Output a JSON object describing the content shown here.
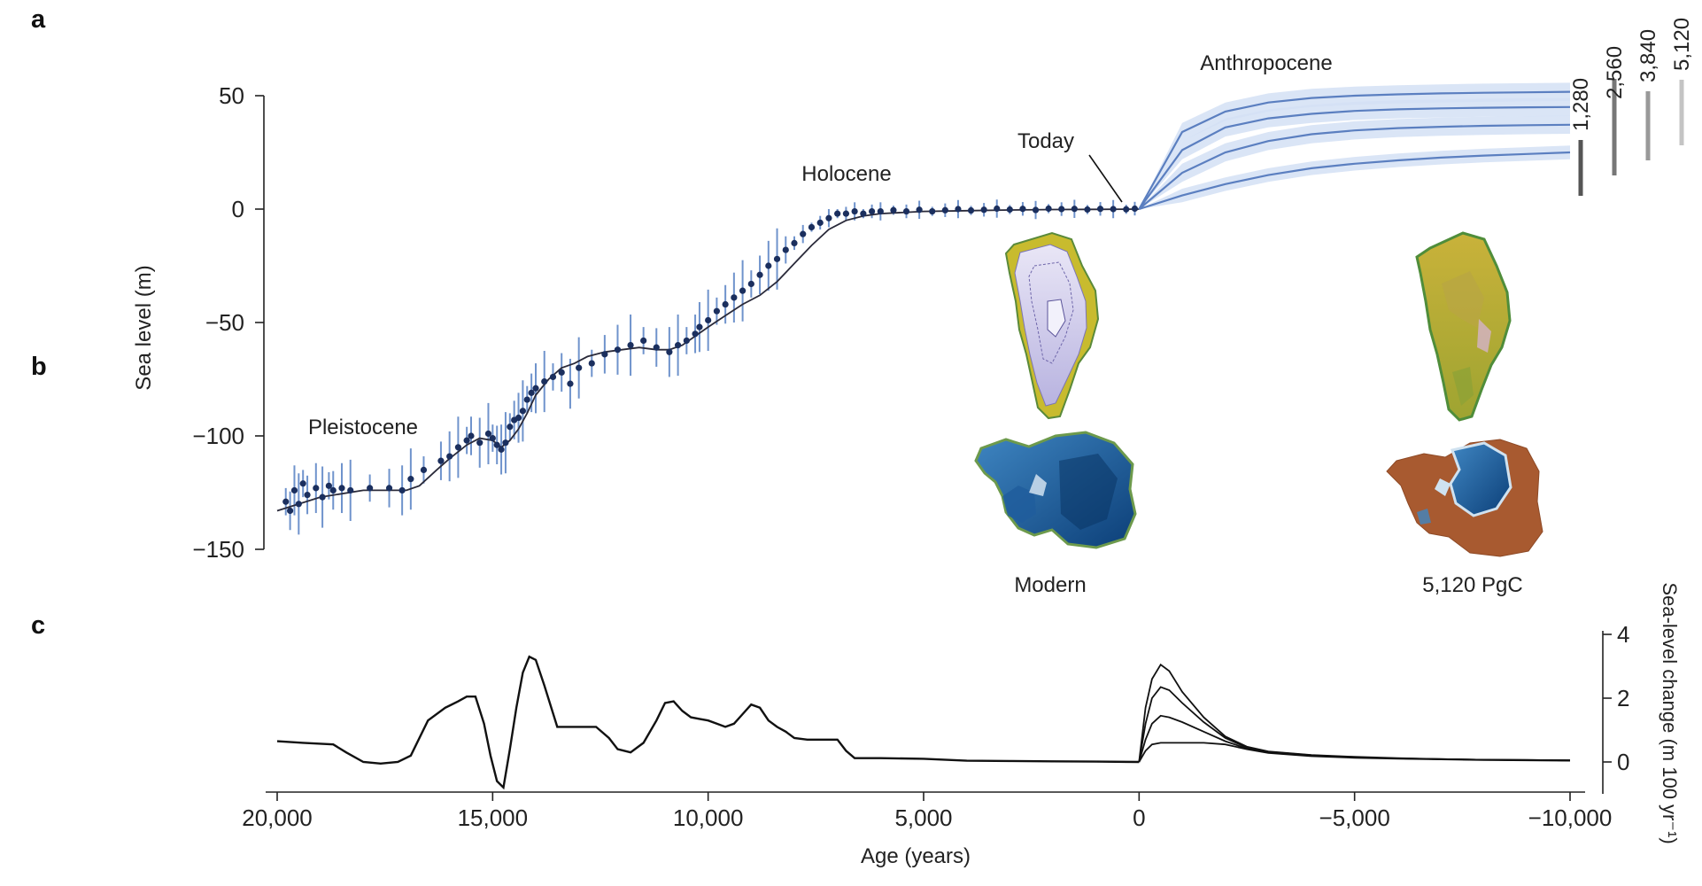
{
  "panels": {
    "a": "a",
    "b": "b",
    "c": "c"
  },
  "colors": {
    "data_points": "#1b2f5e",
    "error_bars": "#6f93cc",
    "projection_line": "#5b7fc0",
    "projection_band": "#d4e0f4",
    "fit_line": "#2a2a3a",
    "ink": "#222222"
  },
  "legend": {
    "scenarios": [
      "1,280",
      "2,560",
      "3,840",
      "5,120"
    ],
    "scenario_shades": [
      "#555555",
      "#777777",
      "#999999",
      "#c4c4c4"
    ]
  },
  "maps": {
    "left_label": "Modern",
    "right_label": "5,120 PgC",
    "left_icon": "greenland-antarctica-ice-sheet-modern-icon",
    "right_icon": "greenland-antarctica-ice-sheet-5120pgc-icon"
  },
  "chart_data": [
    {
      "type": "scatter",
      "panel": "a",
      "title": "",
      "xlabel": "Age (years)",
      "ylabel": "Sea level (m)",
      "xlim": [
        20000,
        -10000
      ],
      "ylim": [
        -150,
        50
      ],
      "x_ticks": [
        20000,
        15000,
        10000,
        5000,
        0,
        -5000,
        -10000
      ],
      "x_tick_labels": [
        "20,000",
        "15,000",
        "10,000",
        "5,000",
        "0",
        "−5,000",
        "−10,000"
      ],
      "y_ticks": [
        50,
        0,
        -50,
        -100,
        -150
      ],
      "y_tick_labels": [
        "50",
        "0",
        "−50",
        "−100",
        "−150"
      ],
      "annotations": [
        "Pleistocene",
        "Holocene",
        "Today",
        "Anthropocene"
      ],
      "series": [
        {
          "kind": "observations",
          "x": [
            19800,
            19700,
            19600,
            19500,
            19400,
            19300,
            19100,
            18950,
            18800,
            18700,
            18500,
            18300,
            17850,
            17400,
            17100,
            16900,
            16600,
            16200,
            16000,
            15800,
            15600,
            15500,
            15300,
            15100,
            15000,
            14900,
            14800,
            14700,
            14600,
            14500,
            14400,
            14300,
            14200,
            14100,
            14000,
            13800,
            13600,
            13400,
            13200,
            13000,
            12700,
            12400,
            12100,
            11800,
            11500,
            11200,
            10900,
            10700,
            10500,
            10300,
            10200,
            10000,
            9800,
            9600,
            9400,
            9200,
            9000,
            8800,
            8600,
            8400,
            8200,
            8000,
            7800,
            7600,
            7400,
            7200,
            7000,
            6800,
            6600,
            6400,
            6200,
            6000,
            5700,
            5400,
            5100,
            4800,
            4500,
            4200,
            3900,
            3600,
            3300,
            3000,
            2700,
            2400,
            2100,
            1800,
            1500,
            1200,
            900,
            600,
            300,
            100
          ],
          "y": [
            -129,
            -133,
            -124,
            -130,
            -121,
            -126,
            -123,
            -127,
            -122,
            -124,
            -123,
            -124,
            -123,
            -123,
            -124,
            -119,
            -115,
            -111,
            -109,
            -105,
            -102,
            -100,
            -103,
            -99,
            -101,
            -104,
            -106,
            -103,
            -96,
            -93,
            -92,
            -89,
            -84,
            -81,
            -79,
            -76,
            -74,
            -72,
            -77,
            -70,
            -68,
            -64,
            -62,
            -60,
            -58,
            -61,
            -63,
            -60,
            -58,
            -55,
            -52,
            -49,
            -45,
            -42,
            -39,
            -36,
            -33,
            -29,
            -25,
            -22,
            -18,
            -15,
            -11,
            -8,
            -6,
            -4,
            -2,
            -2,
            -1,
            -2,
            -1,
            -1,
            -0.5,
            -1,
            -0.3,
            -1,
            -0.5,
            0,
            -0.6,
            -0.3,
            0.2,
            -0.2,
            0.1,
            -0.4,
            0.2,
            0,
            0.1,
            -0.2,
            0.1,
            0,
            -0.1,
            0.2
          ]
        },
        {
          "kind": "fit",
          "x": [
            20000,
            19000,
            18000,
            17300,
            17000,
            16700,
            16300,
            16000,
            15600,
            15300,
            15000,
            14800,
            14600,
            14400,
            14200,
            14000,
            13700,
            13400,
            13100,
            12800,
            12400,
            12000,
            11600,
            11200,
            10900,
            10600,
            10300,
            10000,
            9600,
            9200,
            8800,
            8400,
            8000,
            7600,
            7200,
            6800,
            6400,
            6000,
            5000,
            4000,
            3000,
            2000,
            1000,
            0
          ],
          "y": [
            -133,
            -127,
            -124,
            -124,
            -124,
            -122,
            -115,
            -110,
            -104,
            -101,
            -102,
            -105,
            -102,
            -97,
            -90,
            -82,
            -75,
            -70,
            -68,
            -65,
            -63,
            -62,
            -61,
            -62,
            -62,
            -60,
            -56,
            -52,
            -47,
            -42,
            -38,
            -32,
            -24,
            -16,
            -9,
            -5,
            -3,
            -2,
            -1,
            -0.7,
            -0.4,
            -0.2,
            -0.1,
            0
          ]
        },
        {
          "kind": "projection",
          "name": "1,280",
          "x": [
            0,
            -1000,
            -2000,
            -3000,
            -4000,
            -5000,
            -6000,
            -7000,
            -8000,
            -9000,
            -10000
          ],
          "y": [
            0,
            6,
            11,
            15,
            18,
            20,
            21.5,
            22.7,
            23.6,
            24.3,
            25
          ],
          "band": 3
        },
        {
          "kind": "projection",
          "name": "2,560",
          "x": [
            0,
            -1000,
            -2000,
            -3000,
            -4000,
            -5000,
            -6000,
            -7000,
            -8000,
            -9000,
            -10000
          ],
          "y": [
            0,
            16,
            25,
            30,
            33,
            34.7,
            35.7,
            36.3,
            36.7,
            37,
            37.2
          ],
          "band": 4
        },
        {
          "kind": "projection",
          "name": "3,840",
          "x": [
            0,
            -1000,
            -2000,
            -3000,
            -4000,
            -5000,
            -6000,
            -7000,
            -8000,
            -9000,
            -10000
          ],
          "y": [
            0,
            26,
            36,
            40,
            42,
            43.3,
            44,
            44.4,
            44.7,
            44.9,
            45
          ],
          "band": 4
        },
        {
          "kind": "projection",
          "name": "5,120",
          "x": [
            0,
            -1000,
            -2000,
            -3000,
            -4000,
            -5000,
            -6000,
            -7000,
            -8000,
            -9000,
            -10000
          ],
          "y": [
            0,
            34,
            43,
            47,
            49,
            50,
            50.6,
            51,
            51.3,
            51.5,
            51.7
          ],
          "band": 4
        }
      ]
    },
    {
      "type": "line",
      "panel": "c",
      "title": "",
      "xlabel": "Age (years)",
      "ylabel": "Sea-level change (m 100 yr⁻¹)",
      "xlim": [
        20000,
        -10000
      ],
      "ylim": [
        -1,
        4
      ],
      "y_ticks": [
        4,
        2,
        0
      ],
      "y_tick_labels": [
        "4",
        "2",
        "0"
      ],
      "series": [
        {
          "kind": "past",
          "x": [
            20000,
            19400,
            18700,
            18400,
            18000,
            17600,
            17200,
            16900,
            16500,
            16100,
            15800,
            15600,
            15400,
            15200,
            15050,
            14900,
            14750,
            14600,
            14450,
            14300,
            14150,
            14000,
            13800,
            13500,
            13000,
            12600,
            12300,
            12100,
            11800,
            11500,
            11200,
            11000,
            10800,
            10600,
            10400,
            10200,
            10000,
            9800,
            9600,
            9400,
            9200,
            9000,
            8800,
            8600,
            8400,
            8200,
            8000,
            7700,
            7300,
            7000,
            6800,
            6600,
            6000,
            5000,
            4000,
            3000,
            2000,
            1000,
            0
          ],
          "y": [
            0.65,
            0.6,
            0.55,
            0.3,
            0,
            -0.05,
            0,
            0.2,
            1.3,
            1.7,
            1.9,
            2.05,
            2.05,
            1.2,
            0.2,
            -0.6,
            -0.8,
            0.4,
            1.7,
            2.8,
            3.3,
            3.2,
            2.4,
            1.1,
            1.1,
            1.1,
            0.75,
            0.4,
            0.3,
            0.6,
            1.3,
            1.85,
            1.9,
            1.6,
            1.4,
            1.35,
            1.3,
            1.2,
            1.1,
            1.2,
            1.5,
            1.8,
            1.7,
            1.3,
            1.1,
            0.95,
            0.75,
            0.7,
            0.7,
            0.7,
            0.35,
            0.12,
            0.12,
            0.1,
            0.04,
            0.03,
            0.02,
            0.01,
            0
          ]
        },
        {
          "kind": "future",
          "name": "1,280",
          "x": [
            0,
            -150,
            -300,
            -500,
            -700,
            -1000,
            -1500,
            -2000,
            -2500,
            -3000,
            -4000,
            -5000,
            -6000,
            -7000,
            -8000,
            -9000,
            -10000
          ],
          "y": [
            0,
            0.35,
            0.55,
            0.6,
            0.6,
            0.6,
            0.6,
            0.55,
            0.4,
            0.28,
            0.18,
            0.13,
            0.1,
            0.08,
            0.06,
            0.05,
            0.04
          ]
        },
        {
          "kind": "future",
          "name": "2,560",
          "x": [
            0,
            -150,
            -300,
            -500,
            -700,
            -1000,
            -1500,
            -2000,
            -2500,
            -3000,
            -4000,
            -5000,
            -6000,
            -7000,
            -8000,
            -9000,
            -10000
          ],
          "y": [
            0,
            0.7,
            1.2,
            1.45,
            1.4,
            1.25,
            0.95,
            0.65,
            0.42,
            0.3,
            0.2,
            0.15,
            0.11,
            0.09,
            0.07,
            0.06,
            0.05
          ]
        },
        {
          "kind": "future",
          "name": "3,840",
          "x": [
            0,
            -150,
            -300,
            -500,
            -700,
            -1000,
            -1500,
            -2000,
            -2500,
            -3000,
            -4000,
            -5000,
            -6000,
            -7000,
            -8000,
            -9000,
            -10000
          ],
          "y": [
            0,
            1.2,
            2.0,
            2.35,
            2.25,
            1.85,
            1.25,
            0.75,
            0.45,
            0.32,
            0.21,
            0.15,
            0.11,
            0.09,
            0.07,
            0.06,
            0.05
          ]
        },
        {
          "kind": "future",
          "name": "5,120",
          "x": [
            0,
            -150,
            -300,
            -500,
            -700,
            -1000,
            -1500,
            -2000,
            -2500,
            -3000,
            -4000,
            -5000,
            -6000,
            -7000,
            -8000,
            -9000,
            -10000
          ],
          "y": [
            0,
            1.7,
            2.6,
            3.05,
            2.85,
            2.2,
            1.4,
            0.8,
            0.48,
            0.33,
            0.22,
            0.16,
            0.12,
            0.09,
            0.07,
            0.06,
            0.05
          ]
        }
      ]
    }
  ]
}
